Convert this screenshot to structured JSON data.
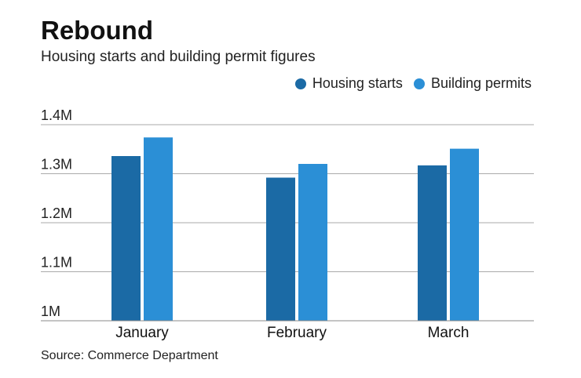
{
  "header": {
    "title": "Rebound",
    "subtitle": "Housing starts and building permit figures"
  },
  "footer": {
    "source": "Source: Commerce Department"
  },
  "colors": {
    "housing_starts": "#1b6aa5",
    "building_permits": "#2b8fd6",
    "gridline": "#aaaaaa"
  },
  "chart_data": {
    "type": "bar",
    "title": "Rebound",
    "subtitle": "Housing starts and building permit figures",
    "categories": [
      "January",
      "February",
      "March"
    ],
    "series": [
      {
        "name": "Housing starts",
        "values": [
          1.336,
          1.292,
          1.317
        ]
      },
      {
        "name": "Building permits",
        "values": [
          1.374,
          1.32,
          1.351
        ]
      }
    ],
    "ylim": [
      1.0,
      1.4
    ],
    "yticks": [
      1.0,
      1.1,
      1.2,
      1.3,
      1.4
    ],
    "ytick_labels": [
      "1M",
      "1.1M",
      "1.2M",
      "1.3M",
      "1.4M"
    ],
    "grid": true,
    "legend_position": "top-right"
  }
}
